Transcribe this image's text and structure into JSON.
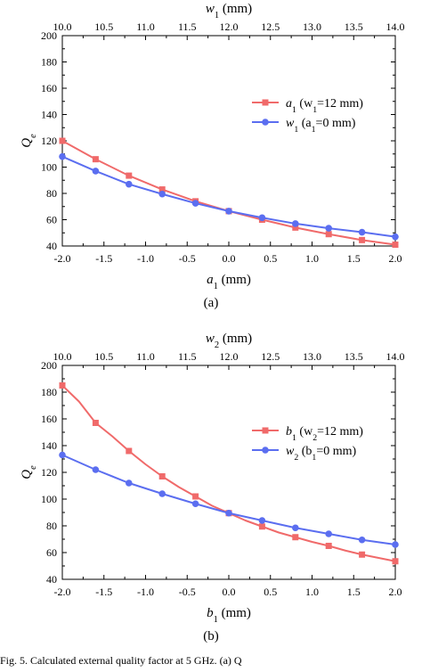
{
  "caption": "Fig. 5.    Calculated external quality factor at 5 GHz. (a) Q",
  "chart_data": [
    {
      "type": "line",
      "panel": "(a)",
      "xlabel": "a",
      "xlabel_sub": "1",
      "xlabel_unit": " (mm)",
      "top_xlabel": "w",
      "top_xlabel_sub": "1",
      "top_xlabel_unit": " (mm)",
      "ylabel": "Q",
      "ylabel_sub": "e",
      "xlim": [
        -2.0,
        2.0
      ],
      "ylim": [
        40,
        200
      ],
      "top_xlim": [
        10.0,
        14.0
      ],
      "x_ticks": [
        "-2.0",
        "-1.5",
        "-1.0",
        "-0.5",
        "0.0",
        "0.5",
        "1.0",
        "1.5",
        "2.0"
      ],
      "top_x_ticks": [
        "10.0",
        "10.5",
        "11.0",
        "11.5",
        "12.0",
        "12.5",
        "13.0",
        "13.5",
        "14.0"
      ],
      "y_ticks": [
        "40",
        "60",
        "80",
        "100",
        "120",
        "140",
        "160",
        "180",
        "200"
      ],
      "grid": false,
      "legend_position": "center-right",
      "series": [
        {
          "name": "a",
          "name_sub": "1",
          "name_rest": " (w",
          "name_rest_sub": "1",
          "name_end": "=12 mm)",
          "color": "#f06a6a",
          "marker": "square",
          "axis": "bottom",
          "x": [
            -2.0,
            -1.6,
            -1.2,
            -0.8,
            -0.4,
            0.0,
            0.4,
            0.8,
            1.2,
            1.6,
            2.0
          ],
          "y": [
            120,
            106,
            93.5,
            83,
            74,
            66.5,
            60,
            54,
            49,
            44.5,
            41
          ]
        },
        {
          "name": "w",
          "name_sub": "1",
          "name_rest": " (a",
          "name_rest_sub": "1",
          "name_end": "=0 mm)",
          "color": "#5b6ef0",
          "marker": "circle",
          "axis": "top",
          "x": [
            10.0,
            10.4,
            10.8,
            11.2,
            11.6,
            12.0,
            12.4,
            12.8,
            13.2,
            13.6,
            14.0
          ],
          "y": [
            108,
            97,
            87,
            79.5,
            72.5,
            66.5,
            61.5,
            57,
            53.5,
            50.5,
            47
          ]
        }
      ]
    },
    {
      "type": "line",
      "panel": "(b)",
      "xlabel": "b",
      "xlabel_sub": "1",
      "xlabel_unit": " (mm)",
      "top_xlabel": "w",
      "top_xlabel_sub": "2",
      "top_xlabel_unit": " (mm)",
      "ylabel": "Q",
      "ylabel_sub": "e",
      "xlim": [
        -2.0,
        2.0
      ],
      "ylim": [
        40,
        200
      ],
      "top_xlim": [
        10.0,
        14.0
      ],
      "x_ticks": [
        "-2.0",
        "-1.5",
        "-1.0",
        "-0.5",
        "0.0",
        "0.5",
        "1.0",
        "1.5",
        "2.0"
      ],
      "top_x_ticks": [
        "10.0",
        "10.5",
        "11.0",
        "11.5",
        "12.0",
        "12.5",
        "13.0",
        "13.5",
        "14.0"
      ],
      "y_ticks": [
        "40",
        "60",
        "80",
        "100",
        "120",
        "140",
        "160",
        "180",
        "200"
      ],
      "grid": false,
      "legend_position": "center-right",
      "series": [
        {
          "name": "b",
          "name_sub": "1",
          "name_rest": " (w",
          "name_rest_sub": "2",
          "name_end": "=12 mm)",
          "color": "#f06a6a",
          "marker": "square",
          "axis": "bottom",
          "x": [
            -2.0,
            -1.8,
            -1.6,
            -1.4,
            -1.2,
            -1.0,
            -0.8,
            -0.6,
            -0.4,
            -0.2,
            0.0,
            0.2,
            0.4,
            0.6,
            0.8,
            1.0,
            1.2,
            1.4,
            1.6,
            1.8,
            2.0
          ],
          "y": [
            185,
            173,
            157,
            147,
            136,
            126,
            117,
            109,
            102,
            95,
            89.5,
            84,
            79.5,
            75,
            71.5,
            68,
            65,
            61.5,
            58.5,
            56,
            53.5
          ]
        },
        {
          "name": "w",
          "name_sub": "2",
          "name_rest": " (b",
          "name_rest_sub": "1",
          "name_end": "=0 mm)",
          "color": "#5b6ef0",
          "marker": "circle",
          "axis": "top",
          "x": [
            10.0,
            10.4,
            10.8,
            11.2,
            11.6,
            12.0,
            12.4,
            12.8,
            13.2,
            13.6,
            14.0
          ],
          "y": [
            133,
            122,
            112,
            104,
            96.5,
            89.5,
            84,
            78.5,
            74,
            69.5,
            66
          ]
        }
      ]
    }
  ]
}
